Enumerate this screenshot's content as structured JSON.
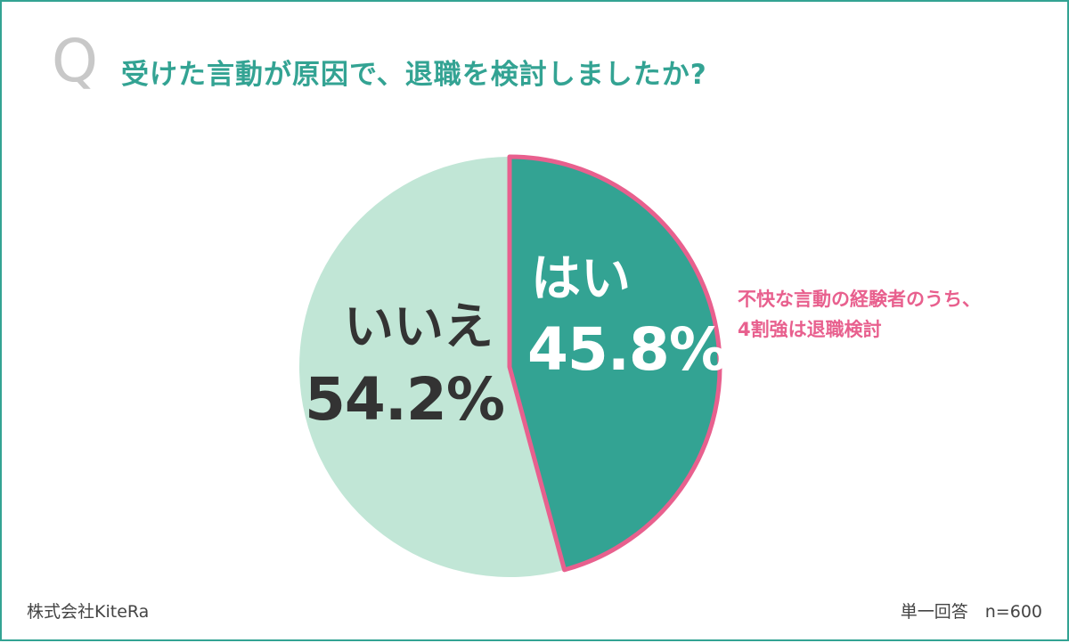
{
  "question": {
    "mark": "Q",
    "text": "受けた言動が原因で、退職を検討しましたか?"
  },
  "chart_data": {
    "type": "pie",
    "slices": [
      {
        "name": "はい",
        "value": 45.8,
        "label": "45.8%",
        "color": "#33a393",
        "highlight_color": "#e8608e"
      },
      {
        "name": "いいえ",
        "value": 54.2,
        "label": "54.2%",
        "color": "#c1e6d6"
      }
    ],
    "start": "12 o'clock, clockwise"
  },
  "annotation": {
    "line1": "不快な言動の経験者のうち、",
    "line2": "4割強は退職検討"
  },
  "footer": {
    "source": "株式会社KiteRa",
    "sample": "単一回答　n=600"
  }
}
